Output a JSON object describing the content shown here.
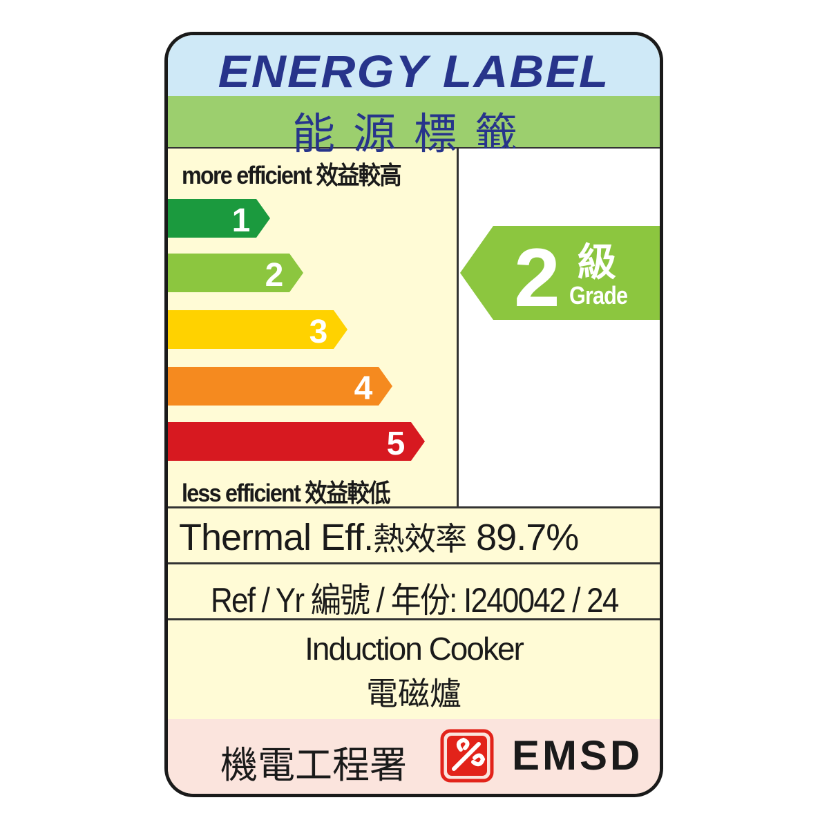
{
  "header": {
    "title_en": "ENERGY LABEL",
    "title_zh": "能源標籤"
  },
  "scale": {
    "top_label": "more efficient 效益較高",
    "bottom_label": "less efficient 效益較低",
    "grades": [
      {
        "number": "1",
        "color": "#1b9a3e"
      },
      {
        "number": "2",
        "color": "#8cc63f"
      },
      {
        "number": "3",
        "color": "#ffd200"
      },
      {
        "number": "4",
        "color": "#f58a1f"
      },
      {
        "number": "5",
        "color": "#d71920"
      }
    ]
  },
  "rating": {
    "grade": "2",
    "grade_zh": "級",
    "grade_en": "Grade",
    "color": "#8cc63f"
  },
  "efficiency": {
    "label": "Thermal Eff.",
    "label_zh": "熱效率",
    "value": "89.7%"
  },
  "reference": {
    "label": "Ref / Yr 編號 / 年份:",
    "value": "I240042 / 24"
  },
  "product": {
    "name_en": "Induction Cooker",
    "name_zh": "電磁爐"
  },
  "footer": {
    "agency_zh": "機電工程署",
    "agency_en": "EMSD",
    "logo_color": "#e2231a"
  }
}
